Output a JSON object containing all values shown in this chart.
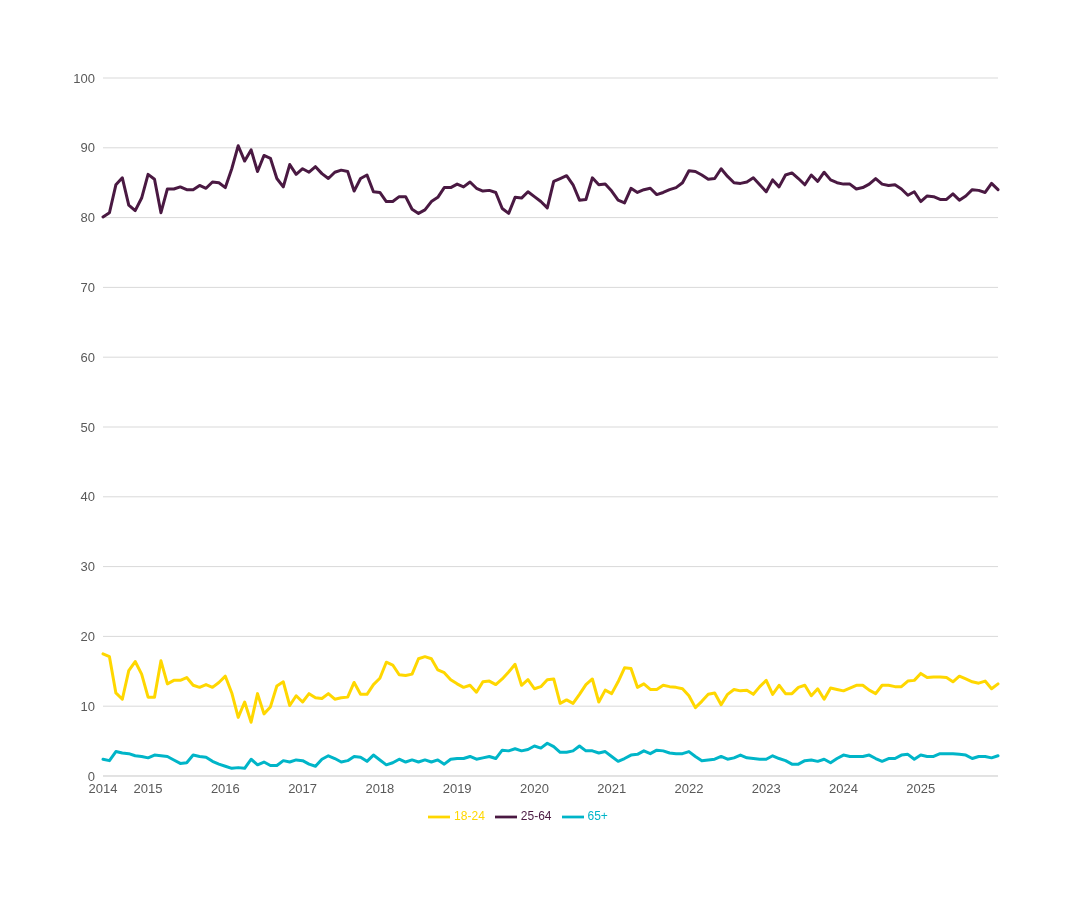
{
  "chart_data": {
    "type": "line",
    "categories": [
      "2014",
      null,
      null,
      null,
      null,
      null,
      null,
      "2015",
      null,
      null,
      null,
      null,
      null,
      null,
      null,
      null,
      null,
      null,
      null,
      "2016",
      null,
      null,
      null,
      null,
      null,
      null,
      null,
      null,
      null,
      null,
      null,
      "2017",
      null,
      null,
      null,
      null,
      null,
      null,
      null,
      null,
      null,
      null,
      null,
      "2018",
      null,
      null,
      null,
      null,
      null,
      null,
      null,
      null,
      null,
      null,
      null,
      "2019",
      null,
      null,
      null,
      null,
      null,
      null,
      null,
      null,
      null,
      null,
      null,
      "2020",
      null,
      null,
      null,
      null,
      null,
      null,
      null,
      null,
      null,
      null,
      null,
      "2021",
      null,
      null,
      null,
      null,
      null,
      null,
      null,
      null,
      null,
      null,
      null,
      "2022",
      null,
      null,
      null,
      null,
      null,
      null,
      null,
      null,
      null,
      null,
      null,
      "2023",
      null,
      null,
      null,
      null,
      null,
      null,
      null,
      null,
      null,
      null,
      null,
      "2024",
      null,
      null,
      null,
      null,
      null,
      null,
      null,
      null,
      null,
      null,
      null,
      "2025",
      null,
      null,
      null,
      null,
      null,
      null,
      null,
      null,
      null,
      null,
      null,
      null
    ],
    "series": [
      {
        "name": "18-24",
        "color": "#ffd700",
        "values": [
          17.5,
          17.1,
          11.9,
          11.0,
          15.1,
          16.4,
          14.6,
          11.3,
          11.3,
          16.5,
          13.2,
          13.7,
          13.7,
          14.1,
          13.0,
          12.7,
          13.1,
          12.7,
          13.4,
          14.3,
          11.9,
          8.4,
          10.6,
          7.7,
          11.8,
          8.9,
          9.9,
          12.9,
          13.5,
          10.1,
          11.5,
          10.6,
          11.8,
          11.2,
          11.1,
          11.8,
          11.0,
          11.2,
          11.3,
          13.4,
          11.7,
          11.7,
          13.1,
          14.0,
          16.3,
          15.9,
          14.5,
          14.4,
          14.6,
          16.8,
          17.1,
          16.8,
          15.2,
          14.8,
          13.8,
          13.2,
          12.7,
          13.0,
          12.0,
          13.5,
          13.6,
          13.1,
          13.9,
          14.9,
          16.0,
          13.0,
          13.8,
          12.5,
          12.8,
          13.8,
          13.9,
          10.4,
          10.9,
          10.4,
          11.7,
          13.1,
          13.9,
          10.6,
          12.3,
          11.8,
          13.5,
          15.5,
          15.4,
          12.7,
          13.2,
          12.4,
          12.4,
          13.0,
          12.8,
          12.7,
          12.5,
          11.5,
          9.8,
          10.7,
          11.7,
          11.9,
          10.2,
          11.7,
          12.4,
          12.2,
          12.3,
          11.7,
          12.8,
          13.7,
          11.7,
          13.0,
          11.8,
          11.8,
          12.7,
          13.0,
          11.5,
          12.5,
          11.0,
          12.6,
          12.4,
          12.2,
          12.6,
          13.0,
          13.0,
          12.3,
          11.8,
          13.0,
          13.0,
          12.8,
          12.8,
          13.6,
          13.7,
          14.7,
          14.1,
          14.2,
          14.2,
          14.1,
          13.5,
          14.3,
          13.9,
          13.5,
          13.3,
          13.6,
          12.5,
          13.2
        ]
      },
      {
        "name": "25-64",
        "color": "#4a1942",
        "values": [
          80.1,
          80.7,
          84.7,
          85.7,
          81.8,
          81.0,
          82.8,
          86.2,
          85.5,
          80.7,
          84.1,
          84.1,
          84.4,
          84.0,
          84.0,
          84.6,
          84.2,
          85.1,
          85.0,
          84.3,
          87.0,
          90.3,
          88.1,
          89.7,
          86.6,
          88.9,
          88.5,
          85.6,
          84.4,
          87.6,
          86.2,
          87.0,
          86.5,
          87.3,
          86.3,
          85.6,
          86.5,
          86.8,
          86.6,
          83.8,
          85.6,
          86.1,
          83.7,
          83.6,
          82.3,
          82.3,
          83.0,
          83.0,
          81.2,
          80.6,
          81.1,
          82.3,
          82.9,
          84.3,
          84.3,
          84.8,
          84.4,
          85.1,
          84.2,
          83.8,
          83.9,
          83.6,
          81.3,
          80.6,
          82.9,
          82.8,
          83.7,
          83.0,
          82.3,
          81.4,
          85.2,
          85.6,
          86.0,
          84.7,
          82.5,
          82.6,
          85.7,
          84.7,
          84.8,
          83.8,
          82.5,
          82.1,
          84.2,
          83.6,
          84.0,
          84.2,
          83.3,
          83.6,
          84.0,
          84.3,
          85.0,
          86.7,
          86.6,
          86.1,
          85.5,
          85.6,
          87.0,
          85.9,
          85.0,
          84.9,
          85.1,
          85.7,
          84.7,
          83.7,
          85.4,
          84.4,
          86.1,
          86.4,
          85.6,
          84.7,
          86.1,
          85.2,
          86.5,
          85.4,
          85.0,
          84.8,
          84.8,
          84.1,
          84.3,
          84.8,
          85.6,
          84.8,
          84.6,
          84.7,
          84.1,
          83.2,
          83.7,
          82.3,
          83.1,
          83.0,
          82.6,
          82.6,
          83.4,
          82.5,
          83.1,
          84.0,
          83.9,
          83.6,
          84.9,
          84.0
        ]
      },
      {
        "name": "65+",
        "color": "#00b5c8",
        "values": [
          2.4,
          2.2,
          3.5,
          3.3,
          3.2,
          2.9,
          2.8,
          2.6,
          3.0,
          2.9,
          2.8,
          2.3,
          1.8,
          1.9,
          3.0,
          2.8,
          2.7,
          2.1,
          1.7,
          1.4,
          1.1,
          1.2,
          1.1,
          2.4,
          1.6,
          2.0,
          1.5,
          1.5,
          2.2,
          2.0,
          2.3,
          2.2,
          1.7,
          1.4,
          2.4,
          2.9,
          2.5,
          2.0,
          2.2,
          2.8,
          2.7,
          2.1,
          3.0,
          2.3,
          1.6,
          1.9,
          2.4,
          2.0,
          2.3,
          2.0,
          2.3,
          2.0,
          2.3,
          1.7,
          2.4,
          2.5,
          2.5,
          2.8,
          2.4,
          2.6,
          2.8,
          2.5,
          3.7,
          3.6,
          3.9,
          3.6,
          3.8,
          4.3,
          4.0,
          4.7,
          4.2,
          3.4,
          3.4,
          3.6,
          4.3,
          3.6,
          3.6,
          3.3,
          3.5,
          2.8,
          2.1,
          2.5,
          3.0,
          3.1,
          3.6,
          3.2,
          3.7,
          3.6,
          3.3,
          3.2,
          3.2,
          3.5,
          2.8,
          2.2,
          2.3,
          2.4,
          2.8,
          2.4,
          2.6,
          3.0,
          2.6,
          2.5,
          2.4,
          2.4,
          2.9,
          2.5,
          2.2,
          1.7,
          1.7,
          2.2,
          2.3,
          2.1,
          2.4,
          1.9,
          2.5,
          3.0,
          2.8,
          2.8,
          2.8,
          3.0,
          2.5,
          2.1,
          2.5,
          2.5,
          3.0,
          3.1,
          2.4,
          3.0,
          2.8,
          2.8,
          3.2,
          3.2,
          3.2,
          3.1,
          3.0,
          2.5,
          2.8,
          2.8,
          2.6,
          2.9
        ]
      }
    ],
    "ylim": [
      0,
      100
    ],
    "yticks": [
      0,
      10,
      20,
      30,
      40,
      50,
      60,
      70,
      80,
      90,
      100
    ],
    "grid": "y",
    "legend": "bottom",
    "marker": "none",
    "line_style": "solid"
  }
}
